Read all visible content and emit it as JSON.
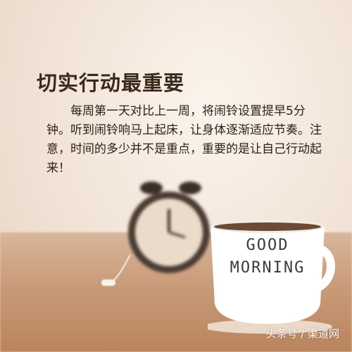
{
  "poster": {
    "title": "切实行动最重要",
    "body": "每周第一天对比上一周，将闹铃设置提早5分钟。听到闹铃响马上起床，让身体逐渐适应节奏。注意，时间的多少并不是重点，重要的是让自己行动起来！"
  },
  "cup": {
    "line1": "GOOD",
    "line2": "MORNING"
  },
  "watermark": "头条号 / 渠道网",
  "colors": {
    "background": "#f1e3d6",
    "table": "#c99b78",
    "title": "#3a2a1a",
    "text": "#2b211a"
  }
}
